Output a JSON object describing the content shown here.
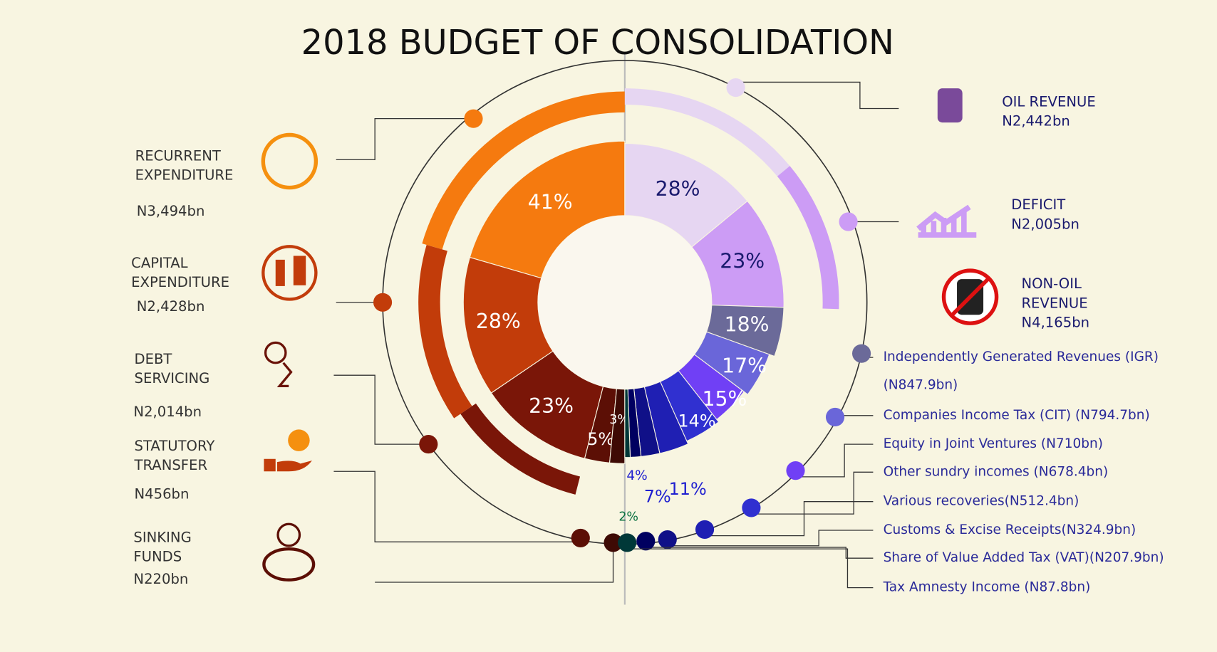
{
  "chart_data": {
    "type": "donut",
    "title": "2018 BUDGET OF CONSOLIDATION",
    "left": {
      "categories": [
        [
          "RECURRENT",
          "EXPENDITURE"
        ],
        [
          "CAPITAL",
          "EXPENDITURE"
        ],
        [
          "DEBT",
          "SERVICING"
        ],
        [
          "STATUTORY",
          "TRANSFER"
        ],
        [
          "SINKING",
          "FUNDS"
        ]
      ],
      "amounts": [
        "N3,494bn",
        "N2,428bn",
        "N2,014bn",
        "N456bn",
        "N220bn"
      ],
      "values": [
        41,
        28,
        23,
        5,
        3
      ],
      "value_labels": [
        "41%",
        "28%",
        "23%",
        "5%",
        "3%"
      ],
      "colors": [
        "#f57a0f",
        "#c23c0a",
        "#7a1608",
        "#5c0f05",
        "#3e0a04"
      ]
    },
    "right": {
      "categories": [
        [
          "OIL REVENUE"
        ],
        [
          "DEFICIT"
        ]
      ],
      "amounts": [
        "N2,442bn",
        "N2,005bn"
      ],
      "values": [
        28,
        23
      ],
      "value_labels": [
        "28%",
        "23%"
      ],
      "colors": [
        "#e6d6f2",
        "#cc9cf5"
      ]
    },
    "non_oil": {
      "name": [
        "NON-OIL",
        "REVENUE"
      ],
      "amount": "N4,165bn",
      "categories": [
        [
          "Independently Generated Revenues (IGR)",
          "(N847.9bn)"
        ],
        [
          "Companies Income Tax (CIT)  (N794.7bn)"
        ],
        [
          "Equity in Joint Ventures (N710bn)"
        ],
        [
          "Other sundry incomes (N678.4bn)"
        ],
        [
          "Various recoveries(N512.4bn)"
        ],
        [
          "Customs & Excise Receipts(N324.9bn)"
        ],
        [
          "Share of Value Added Tax (VAT)(N207.9bn)"
        ],
        [
          "Tax Amnesty Income (N87.8bn)"
        ]
      ],
      "values": [
        18,
        17,
        15,
        14,
        11,
        7,
        4,
        2
      ],
      "value_labels": [
        "18%",
        "17%",
        "15%",
        "14%",
        "11%",
        "7%",
        "4%",
        "2%"
      ],
      "colors": [
        "#6b6a99",
        "#6a66d9",
        "#7040f5",
        "#3030d0",
        "#1f1fb3",
        "#101088",
        "#000060",
        "#003838"
      ]
    }
  }
}
